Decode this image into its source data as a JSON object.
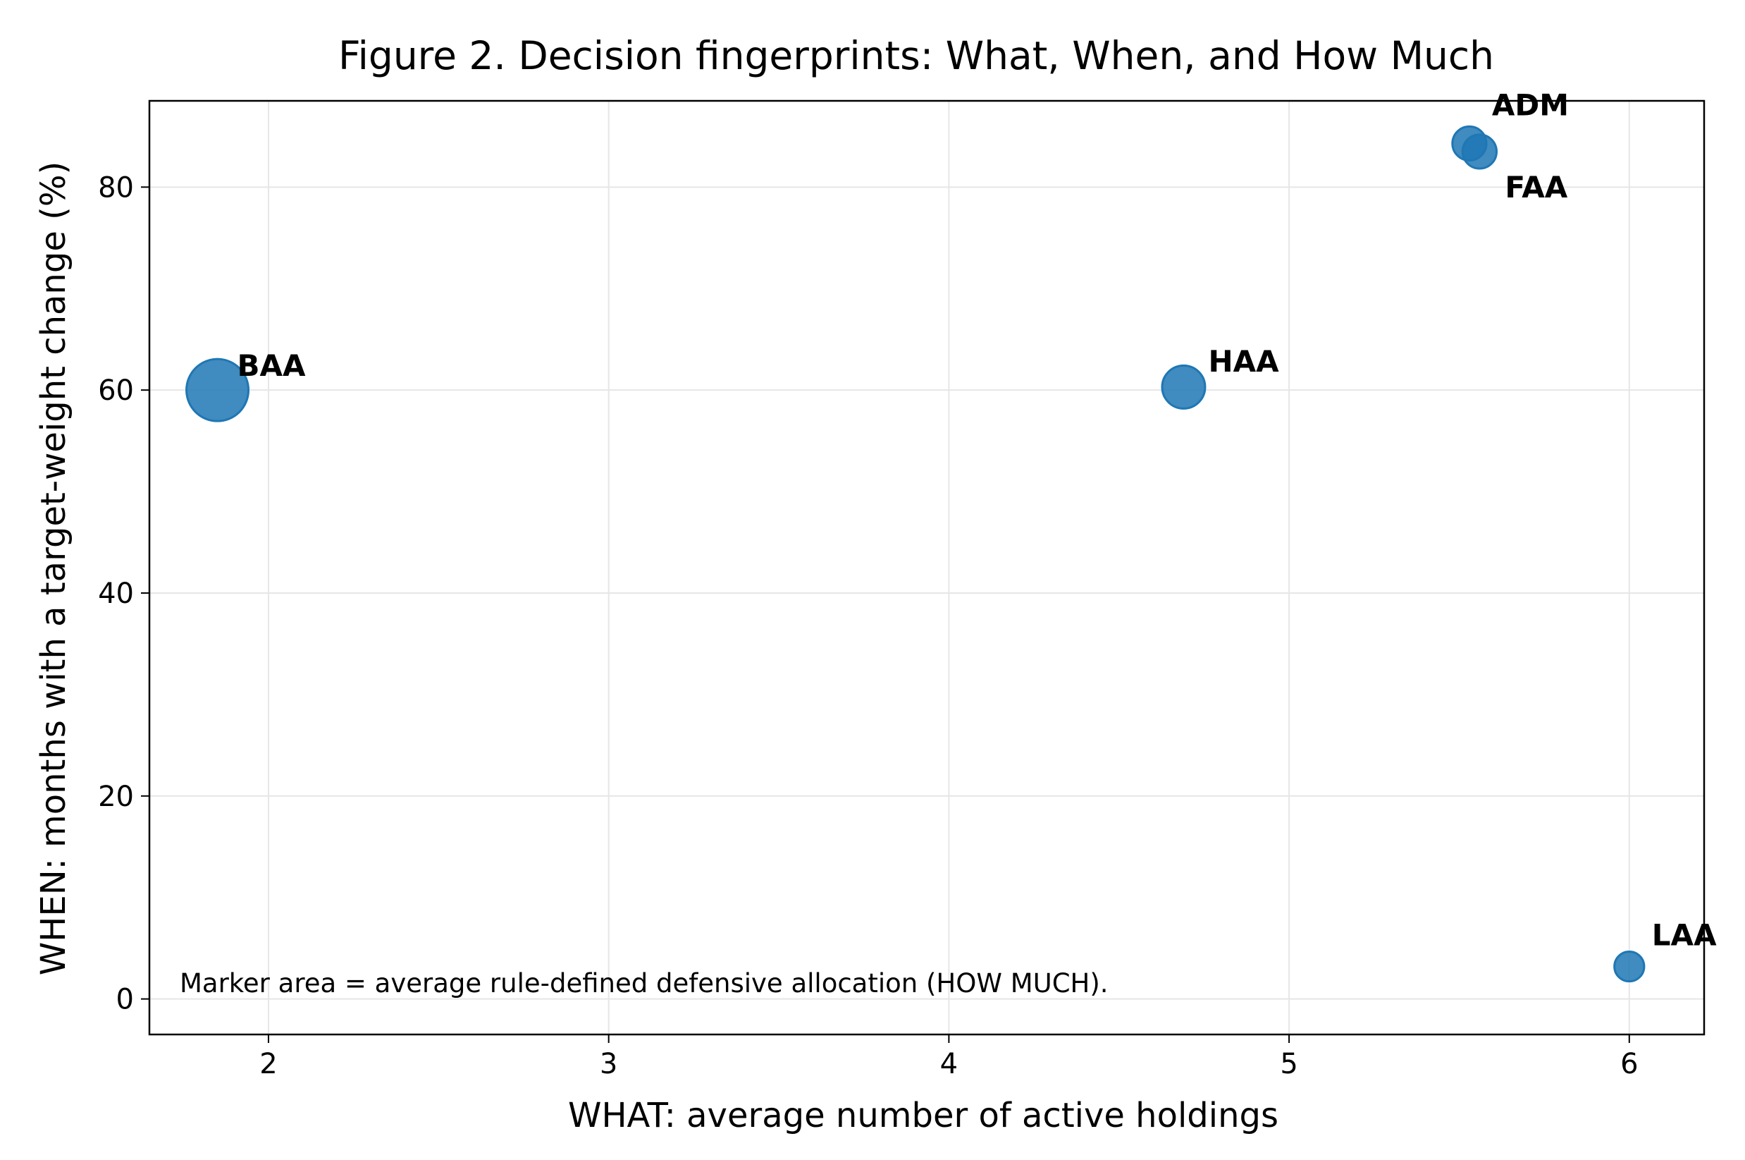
{
  "chart_data": {
    "type": "scatter",
    "title": "Figure 2. Decision fingerprints: What, When, and How Much",
    "xlabel": "WHAT: average number of active holdings",
    "ylabel": "WHEN: months with a target-weight change (%)",
    "xlim": [
      1.65,
      6.22
    ],
    "ylim": [
      -3.5,
      88.5
    ],
    "xticks": [
      2,
      3,
      4,
      5,
      6
    ],
    "yticks": [
      0,
      20,
      40,
      60,
      80
    ],
    "grid": true,
    "marker_color": "#1f77b4",
    "marker_opacity": 0.85,
    "marker_size_meaning": "Marker area = average rule-defined defensive allocation (HOW MUCH).",
    "points": [
      {
        "label": "BAA",
        "x": 1.85,
        "y": 60.0,
        "size": 100
      },
      {
        "label": "HAA",
        "x": 4.69,
        "y": 60.3,
        "size": 48
      },
      {
        "label": "ADM",
        "x": 5.53,
        "y": 84.3,
        "size": 30
      },
      {
        "label": "FAA",
        "x": 5.56,
        "y": 83.5,
        "size": 30
      },
      {
        "label": "LAA",
        "x": 6.0,
        "y": 3.2,
        "size": 23
      }
    ]
  }
}
